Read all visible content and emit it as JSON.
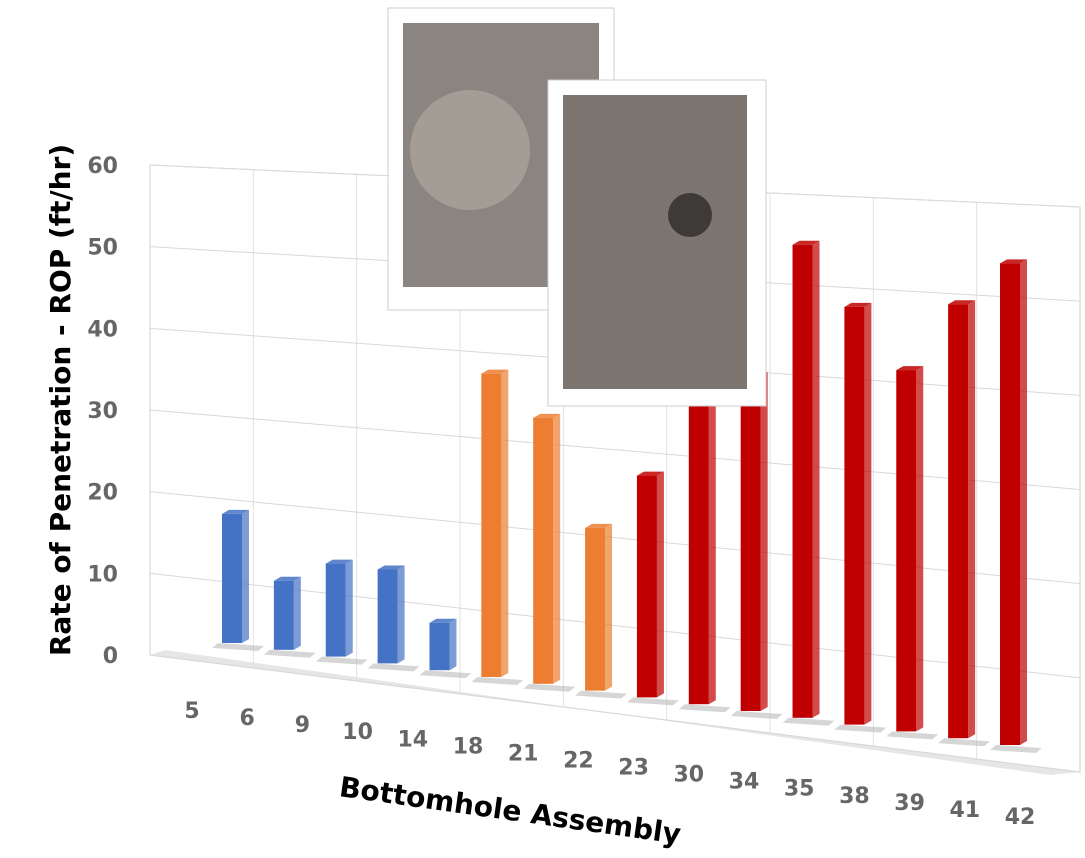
{
  "chart_data": {
    "type": "bar3d",
    "x_label": "Bottomhole Assembly",
    "y_label": "Rate of Penetration - ROP (ft/hr)",
    "categories": [
      "5",
      "6",
      "9",
      "10",
      "14",
      "18",
      "21",
      "22",
      "23",
      "30",
      "34",
      "35",
      "38",
      "39",
      "41",
      "42"
    ],
    "values": [
      17,
      9,
      12,
      12,
      6,
      38,
      33,
      20,
      27,
      38,
      40,
      56,
      49,
      42,
      50,
      55
    ],
    "colors": [
      "#4472c4",
      "#4472c4",
      "#4472c4",
      "#4472c4",
      "#4472c4",
      "#ed7d31",
      "#ed7d31",
      "#ed7d31",
      "#c00000",
      "#c00000",
      "#c00000",
      "#c00000",
      "#c00000",
      "#c00000",
      "#c00000",
      "#c00000"
    ],
    "ylim": [
      0,
      60
    ],
    "yticks": [
      0,
      10,
      20,
      30,
      40,
      50,
      60
    ],
    "grid": true
  }
}
